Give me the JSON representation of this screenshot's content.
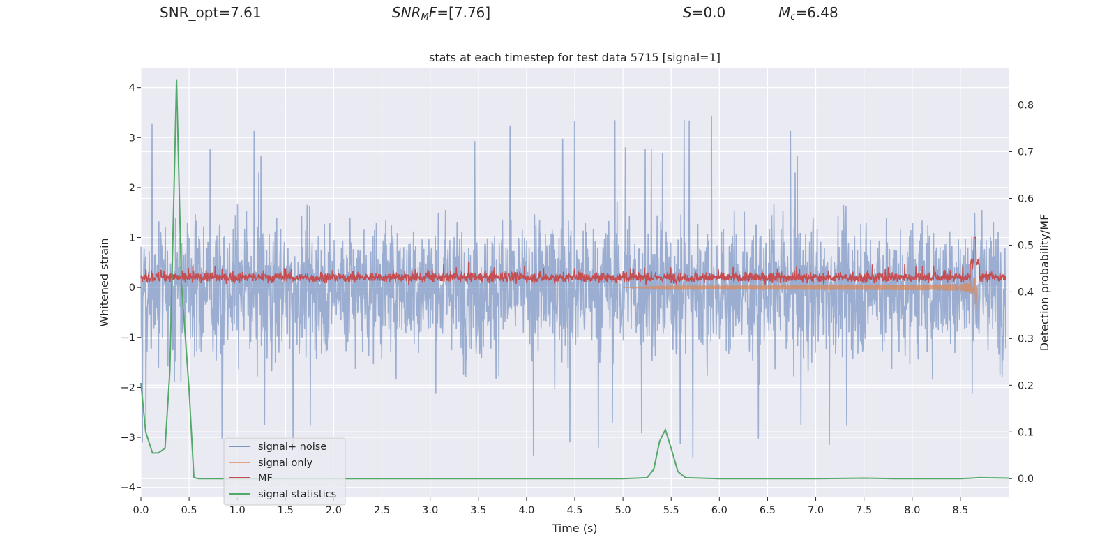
{
  "header": {
    "snr_opt": "SNR_opt=7.61",
    "snr_mf_label": "SNR",
    "snr_mf_sub": "M",
    "snr_mf_tail": "F",
    "snr_mf_value": "=[7.76]",
    "s_label": "S",
    "s_value": "=0.0",
    "mc_label": "M",
    "mc_sub": "c",
    "mc_value": "=6.48"
  },
  "colors": {
    "plot_bg": "#eaeaf2",
    "grid": "#ffffff",
    "signal_noise": "#4c72b0",
    "signal_only": "#dd8452",
    "mf": "#c44e52",
    "stats": "#55a868"
  },
  "chart_data": {
    "type": "line",
    "title": "stats at each timestep for test data 5715 [signal=1]",
    "xlabel": "Time (s)",
    "ylabel": "Whitened strain",
    "ylabel_right": "Detection probability/MF",
    "xlim": [
      0.0,
      9.0
    ],
    "ylim": [
      -4.2,
      4.4
    ],
    "ylim_right": [
      -0.04,
      0.88
    ],
    "xticks": [
      "0.0",
      "0.5",
      "1.0",
      "1.5",
      "2.0",
      "2.5",
      "3.0",
      "3.5",
      "4.0",
      "4.5",
      "5.0",
      "5.5",
      "6.0",
      "6.5",
      "7.0",
      "7.5",
      "8.0",
      "8.5"
    ],
    "xtick_values": [
      0.0,
      0.5,
      1.0,
      1.5,
      2.0,
      2.5,
      3.0,
      3.5,
      4.0,
      4.5,
      5.0,
      5.5,
      6.0,
      6.5,
      7.0,
      7.5,
      8.0,
      8.5
    ],
    "yticks": [
      "−4",
      "−3",
      "−2",
      "−1",
      "0",
      "1",
      "2",
      "3",
      "4"
    ],
    "ytick_values": [
      -4,
      -3,
      -2,
      -1,
      0,
      1,
      2,
      3,
      4
    ],
    "yticks_right": [
      "0.0",
      "0.1",
      "0.2",
      "0.3",
      "0.4",
      "0.5",
      "0.6",
      "0.7",
      "0.8"
    ],
    "ytick_values_right": [
      0.0,
      0.1,
      0.2,
      0.3,
      0.4,
      0.5,
      0.6,
      0.7,
      0.8
    ],
    "legend_position": "lower-left",
    "series": [
      {
        "name": "signal+ noise",
        "axis": "left",
        "kind": "noise",
        "amplitude_typical": 2.2,
        "peak": 4.0,
        "trough": -3.65
      },
      {
        "name": "signal only",
        "axis": "left",
        "kind": "chirp",
        "merger_time": 8.65,
        "peak": 0.35,
        "trough": -0.75
      },
      {
        "name": "MF",
        "axis": "left",
        "kind": "band",
        "mean": 0.2,
        "peak_time": 8.65,
        "peak": 1.0
      },
      {
        "name": "signal statistics",
        "axis": "right",
        "x": [
          0.0,
          0.05,
          0.12,
          0.18,
          0.25,
          0.3,
          0.37,
          0.42,
          0.5,
          0.55,
          0.6,
          1.0,
          2.0,
          3.0,
          4.0,
          5.0,
          5.25,
          5.32,
          5.38,
          5.44,
          5.5,
          5.57,
          5.65,
          6.0,
          7.0,
          7.5,
          7.8,
          8.0,
          8.5,
          8.7,
          9.0
        ],
        "y": [
          0.205,
          0.1,
          0.055,
          0.055,
          0.065,
          0.23,
          0.855,
          0.42,
          0.19,
          0.002,
          0.0,
          0.0,
          0.0,
          0.0,
          0.0,
          0.0,
          0.002,
          0.02,
          0.08,
          0.105,
          0.065,
          0.015,
          0.002,
          0.0,
          0.0,
          0.001,
          0.0,
          0.0,
          0.0,
          0.002,
          0.001
        ]
      }
    ]
  }
}
